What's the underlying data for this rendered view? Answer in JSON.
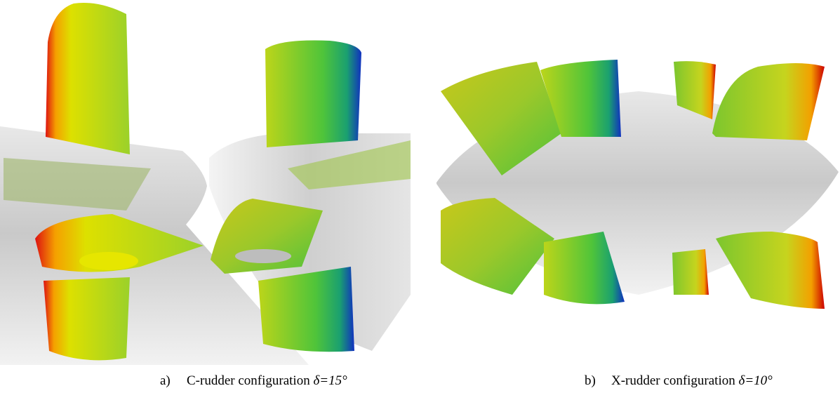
{
  "figures": [
    {
      "label": "a)",
      "caption": "C-rudder configuration",
      "math": "δ=15°"
    },
    {
      "label": "b)",
      "caption": "X-rudder configuration",
      "math": "δ=10°"
    }
  ]
}
